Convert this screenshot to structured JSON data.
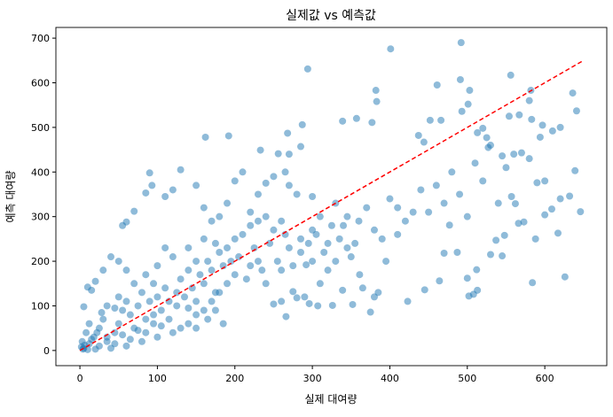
{
  "chart_data": {
    "type": "scatter",
    "title": "실제값 vs 예측값",
    "xlabel": "실제 대여량",
    "ylabel": "예측 대여량",
    "xlim": [
      -31,
      680
    ],
    "ylim": [
      -34,
      724
    ],
    "xticks": [
      0,
      100,
      200,
      300,
      400,
      500,
      600
    ],
    "yticks": [
      0,
      100,
      200,
      300,
      400,
      500,
      600,
      700
    ],
    "grid": false,
    "point_color": "#1f77b4",
    "point_alpha": 0.5,
    "reference_line": {
      "from": [
        0,
        0
      ],
      "to": [
        648,
        648
      ],
      "color": "#ff0000",
      "style": "dashed"
    },
    "points": [
      [
        492,
        690
      ],
      [
        401,
        676
      ],
      [
        294,
        631
      ],
      [
        491,
        607
      ],
      [
        461,
        595
      ],
      [
        503,
        583
      ],
      [
        556,
        617
      ],
      [
        382,
        583
      ],
      [
        582,
        583
      ],
      [
        383,
        558
      ],
      [
        501,
        552
      ],
      [
        493,
        536
      ],
      [
        636,
        577
      ],
      [
        641,
        537
      ],
      [
        580,
        560
      ],
      [
        597,
        505
      ],
      [
        583,
        518
      ],
      [
        554,
        525
      ],
      [
        567,
        528
      ],
      [
        339,
        514
      ],
      [
        357,
        520
      ],
      [
        377,
        511
      ],
      [
        287,
        506
      ],
      [
        452,
        516
      ],
      [
        466,
        516
      ],
      [
        192,
        481
      ],
      [
        162,
        478
      ],
      [
        268,
        487
      ],
      [
        233,
        449
      ],
      [
        285,
        457
      ],
      [
        437,
        482
      ],
      [
        444,
        467
      ],
      [
        513,
        488
      ],
      [
        520,
        498
      ],
      [
        525,
        477
      ],
      [
        527,
        455
      ],
      [
        594,
        478
      ],
      [
        610,
        492
      ],
      [
        570,
        443
      ],
      [
        545,
        436
      ],
      [
        620,
        500
      ],
      [
        632,
        346
      ],
      [
        646,
        311
      ],
      [
        639,
        403
      ],
      [
        626,
        165
      ],
      [
        584,
        152
      ],
      [
        502,
        122
      ],
      [
        508,
        126
      ],
      [
        513,
        135
      ],
      [
        445,
        136
      ],
      [
        423,
        110
      ],
      [
        375,
        86
      ],
      [
        266,
        76
      ],
      [
        352,
        103
      ],
      [
        326,
        101
      ],
      [
        296,
        105
      ],
      [
        307,
        100
      ],
      [
        339,
        135
      ],
      [
        512,
        181
      ],
      [
        500,
        162
      ],
      [
        464,
        156
      ],
      [
        537,
        247
      ],
      [
        548,
        258
      ],
      [
        562,
        329
      ],
      [
        590,
        376
      ],
      [
        600,
        304
      ],
      [
        609,
        317
      ],
      [
        617,
        263
      ],
      [
        557,
        345
      ],
      [
        566,
        285
      ],
      [
        573,
        288
      ],
      [
        588,
        250
      ],
      [
        540,
        330
      ],
      [
        530,
        215
      ],
      [
        545,
        212
      ],
      [
        487,
        220
      ],
      [
        470,
        218
      ],
      [
        477,
        281
      ],
      [
        430,
        310
      ],
      [
        410,
        260
      ],
      [
        395,
        200
      ],
      [
        390,
        250
      ],
      [
        385,
        130
      ],
      [
        365,
        140
      ],
      [
        380,
        120
      ],
      [
        361,
        170
      ],
      [
        350,
        210
      ],
      [
        355,
        240
      ],
      [
        345,
        300
      ],
      [
        340,
        280
      ],
      [
        330,
        200
      ],
      [
        320,
        180
      ],
      [
        300,
        200
      ],
      [
        292,
        192
      ],
      [
        310,
        150
      ],
      [
        290,
        120
      ],
      [
        280,
        118
      ],
      [
        275,
        132
      ],
      [
        260,
        110
      ],
      [
        250,
        104
      ],
      [
        240,
        150
      ],
      [
        260,
        180
      ],
      [
        270,
        230
      ],
      [
        285,
        250
      ],
      [
        300,
        270
      ],
      [
        310,
        300
      ],
      [
        320,
        240
      ],
      [
        330,
        330
      ],
      [
        300,
        345
      ],
      [
        280,
        350
      ],
      [
        270,
        370
      ],
      [
        265,
        400
      ],
      [
        270,
        440
      ],
      [
        256,
        441
      ],
      [
        250,
        390
      ],
      [
        240,
        375
      ],
      [
        230,
        350
      ],
      [
        220,
        310
      ],
      [
        210,
        400
      ],
      [
        200,
        380
      ],
      [
        190,
        330
      ],
      [
        180,
        300
      ],
      [
        170,
        290
      ],
      [
        160,
        320
      ],
      [
        150,
        370
      ],
      [
        130,
        405
      ],
      [
        120,
        360
      ],
      [
        110,
        345
      ],
      [
        90,
        398
      ],
      [
        93,
        370
      ],
      [
        85,
        353
      ],
      [
        70,
        312
      ],
      [
        55,
        280
      ],
      [
        60,
        288
      ],
      [
        40,
        210
      ],
      [
        30,
        180
      ],
      [
        20,
        155
      ],
      [
        10,
        142
      ],
      [
        15,
        135
      ],
      [
        5,
        98
      ],
      [
        110,
        230
      ],
      [
        120,
        210
      ],
      [
        140,
        230
      ],
      [
        150,
        200
      ],
      [
        160,
        250
      ],
      [
        175,
        240
      ],
      [
        190,
        230
      ],
      [
        200,
        250
      ],
      [
        210,
        260
      ],
      [
        220,
        280
      ],
      [
        230,
        290
      ],
      [
        240,
        300
      ],
      [
        250,
        270
      ],
      [
        260,
        290
      ],
      [
        230,
        200
      ],
      [
        220,
        190
      ],
      [
        200,
        170
      ],
      [
        190,
        150
      ],
      [
        180,
        130
      ],
      [
        170,
        110
      ],
      [
        160,
        90
      ],
      [
        150,
        80
      ],
      [
        140,
        60
      ],
      [
        130,
        50
      ],
      [
        120,
        40
      ],
      [
        100,
        30
      ],
      [
        80,
        20
      ],
      [
        60,
        10
      ],
      [
        40,
        5
      ],
      [
        20,
        3
      ],
      [
        10,
        2
      ],
      [
        5,
        5
      ],
      [
        3,
        20
      ],
      [
        8,
        40
      ],
      [
        12,
        60
      ],
      [
        18,
        30
      ],
      [
        25,
        50
      ],
      [
        30,
        70
      ],
      [
        35,
        20
      ],
      [
        45,
        40
      ],
      [
        50,
        60
      ],
      [
        55,
        90
      ],
      [
        60,
        110
      ],
      [
        65,
        80
      ],
      [
        70,
        50
      ],
      [
        75,
        100
      ],
      [
        80,
        130
      ],
      [
        85,
        70
      ],
      [
        90,
        110
      ],
      [
        95,
        150
      ],
      [
        100,
        120
      ],
      [
        105,
        90
      ],
      [
        110,
        140
      ],
      [
        115,
        70
      ],
      [
        125,
        100
      ],
      [
        130,
        160
      ],
      [
        135,
        120
      ],
      [
        140,
        180
      ],
      [
        145,
        140
      ],
      [
        150,
        110
      ],
      [
        155,
        170
      ],
      [
        160,
        150
      ],
      [
        165,
        200
      ],
      [
        170,
        180
      ],
      [
        175,
        130
      ],
      [
        180,
        220
      ],
      [
        185,
        190
      ],
      [
        195,
        200
      ],
      [
        205,
        210
      ],
      [
        215,
        160
      ],
      [
        225,
        230
      ],
      [
        235,
        180
      ],
      [
        245,
        240
      ],
      [
        255,
        200
      ],
      [
        265,
        260
      ],
      [
        275,
        190
      ],
      [
        285,
        220
      ],
      [
        295,
        240
      ],
      [
        305,
        260
      ],
      [
        315,
        220
      ],
      [
        325,
        280
      ],
      [
        335,
        250
      ],
      [
        345,
        230
      ],
      [
        360,
        290
      ],
      [
        370,
        320
      ],
      [
        380,
        270
      ],
      [
        400,
        340
      ],
      [
        410,
        320
      ],
      [
        420,
        290
      ],
      [
        440,
        360
      ],
      [
        450,
        310
      ],
      [
        460,
        370
      ],
      [
        470,
        330
      ],
      [
        480,
        400
      ],
      [
        490,
        350
      ],
      [
        500,
        300
      ],
      [
        510,
        420
      ],
      [
        520,
        380
      ],
      [
        530,
        460
      ],
      [
        550,
        410
      ],
      [
        560,
        440
      ],
      [
        580,
        430
      ],
      [
        600,
        380
      ],
      [
        620,
        340
      ],
      [
        25,
        10
      ],
      [
        35,
        30
      ],
      [
        45,
        15
      ],
      [
        55,
        35
      ],
      [
        65,
        25
      ],
      [
        75,
        45
      ],
      [
        85,
        40
      ],
      [
        95,
        60
      ],
      [
        105,
        55
      ],
      [
        45,
        95
      ],
      [
        50,
        120
      ],
      [
        35,
        100
      ],
      [
        28,
        85
      ],
      [
        15,
        25
      ],
      [
        22,
        40
      ],
      [
        6,
        12
      ],
      [
        2,
        8
      ],
      [
        4,
        3
      ],
      [
        12,
        15
      ],
      [
        70,
        150
      ],
      [
        85,
        170
      ],
      [
        100,
        190
      ],
      [
        60,
        180
      ],
      [
        50,
        200
      ],
      [
        95,
        80
      ],
      [
        115,
        110
      ],
      [
        125,
        130
      ],
      [
        140,
        95
      ],
      [
        150,
        50
      ],
      [
        165,
        70
      ],
      [
        175,
        90
      ],
      [
        185,
        60
      ]
    ]
  }
}
